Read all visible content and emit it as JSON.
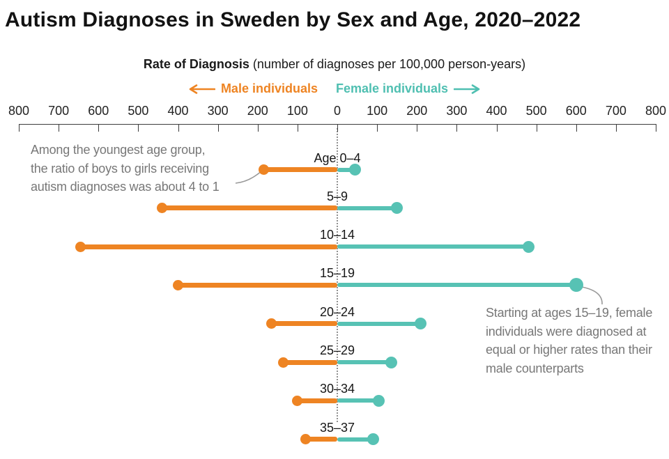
{
  "title": "Autism Diagnoses in Sweden by Sex and Age, 2020–2022",
  "subtitle": {
    "main": "Rate of Diagnosis",
    "units": "(number of diagnoses per 100,000 person-years)"
  },
  "legend": {
    "male": "Male individuals",
    "female": "Female individuals",
    "male_arrow": "left",
    "female_arrow": "right"
  },
  "colors": {
    "male": "#EE8423",
    "female": "#57C2B4",
    "annotation": "#777777",
    "axis": "#3c3c3c",
    "dotted_line": "#909090"
  },
  "annotations": {
    "left": "Among the youngest age group,\nthe ratio of boys to girls receiving\nautism diagnoses was about 4 to 1",
    "right": "Starting at ages 15–19, female\nindividuals were diagnosed at\nequal or higher rates than their\nmale counterparts"
  },
  "chart_data": {
    "type": "bar",
    "variant": "diverging-lollipop",
    "title": "Autism Diagnoses in Sweden by Sex and Age, 2020–2022",
    "xlabel": "Rate of Diagnosis (number of diagnoses per 100,000 person-years)",
    "axis_range": [
      -800,
      800
    ],
    "tick_interval": 100,
    "tick_labels": [
      "800",
      "700",
      "600",
      "500",
      "400",
      "300",
      "200",
      "100",
      "0",
      "100",
      "200",
      "300",
      "400",
      "500",
      "600",
      "700",
      "800"
    ],
    "grid": false,
    "legend_position": "top-center",
    "categories": [
      "Age 0–4",
      "5–9",
      "10–14",
      "15–19",
      "20–24",
      "25–29",
      "30–34",
      "35–37"
    ],
    "series": [
      {
        "name": "Male individuals",
        "direction": "left",
        "color": "#EE8423",
        "values": [
          185,
          440,
          645,
          400,
          165,
          135,
          100,
          80
        ]
      },
      {
        "name": "Female individuals",
        "direction": "right",
        "color": "#57C2B4",
        "values": [
          45,
          150,
          480,
          600,
          210,
          135,
          105,
          90
        ]
      }
    ]
  }
}
